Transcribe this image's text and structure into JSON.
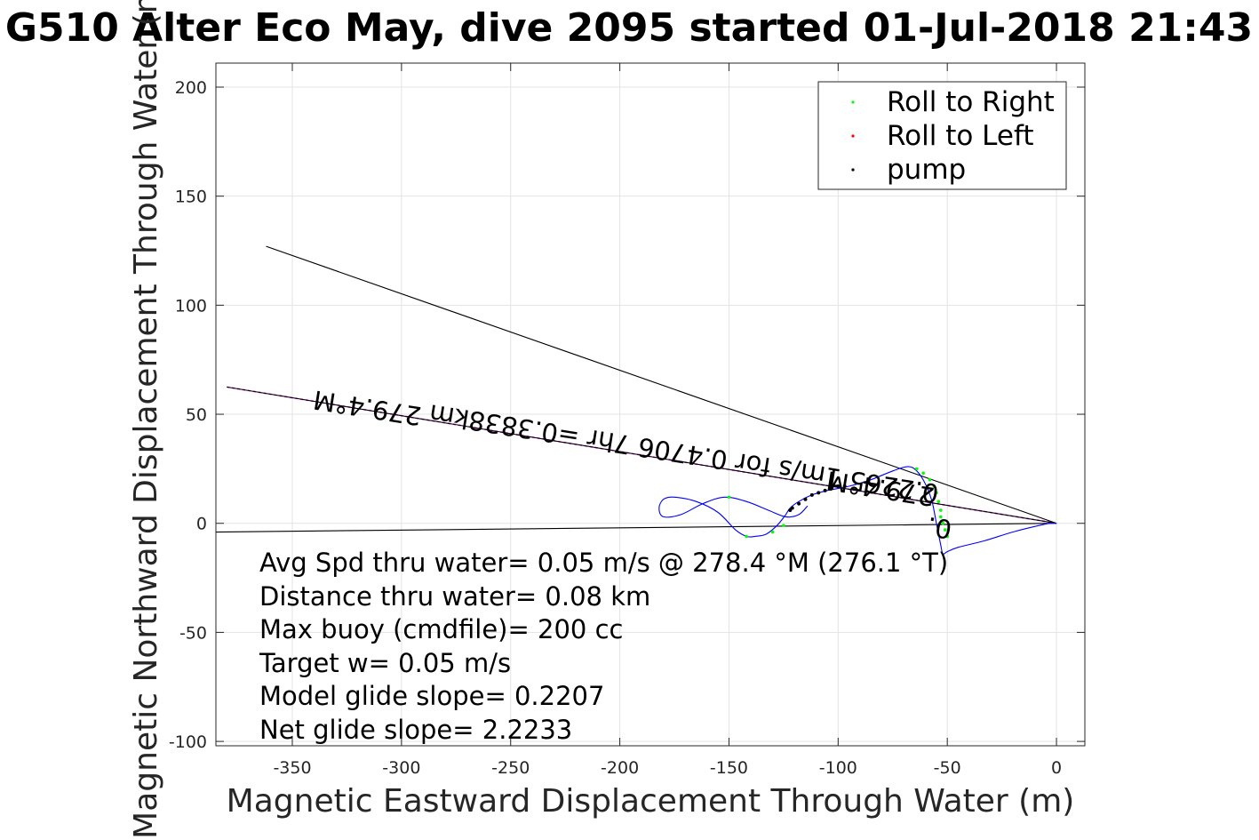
{
  "chart_data": {
    "type": "line",
    "title": "G510 Alter Eco May, dive 2095 started 01-Jul-2018 21:43",
    "xlabel": "Magnetic Eastward Displacement Through Water (m)",
    "ylabel": "Magnetic Northward Displacement Through Water (m)",
    "xlim": [
      -385,
      13
    ],
    "ylim": [
      -102,
      211
    ],
    "xticks": [
      -350,
      -300,
      -250,
      -200,
      -150,
      -100,
      -50,
      0
    ],
    "yticks": [
      -100,
      -50,
      0,
      50,
      100,
      150,
      200
    ],
    "grid": true,
    "legend": {
      "location": "top-right",
      "entries": [
        {
          "name": "Roll to Right",
          "color": "#00ff00"
        },
        {
          "name": "Roll to Left",
          "color": "#ff0000"
        },
        {
          "name": "pump",
          "color": "#000000"
        }
      ]
    },
    "reference_lines": [
      {
        "name": "heading-line",
        "color": "#ff00ff",
        "x": [
          -380,
          0
        ],
        "y": [
          62.5,
          0
        ]
      },
      {
        "name": "black-heading-line",
        "color": "#000000",
        "x": [
          -380,
          0
        ],
        "y": [
          62.5,
          0
        ]
      },
      {
        "name": "upper-line",
        "color": "#000000",
        "x": [
          -362,
          0
        ],
        "y": [
          127,
          0
        ]
      },
      {
        "name": "lower-line",
        "color": "#000000",
        "x": [
          -385,
          0
        ],
        "y": [
          -4,
          0
        ]
      }
    ],
    "track": {
      "color": "#0000ff",
      "x": [
        0,
        -3,
        -8,
        -20,
        -33,
        -45,
        -50,
        -52,
        -53,
        -55,
        -57,
        -60,
        -64,
        -68,
        -75,
        -85,
        -95,
        -105,
        -112,
        -118,
        -122,
        -124,
        -128,
        -133,
        -138,
        -142,
        -147,
        -155,
        -165,
        -175,
        -180,
        -182,
        -180,
        -172,
        -162,
        -152,
        -142,
        -132,
        -124,
        -118,
        -114
      ],
      "y": [
        0,
        0,
        -1,
        -4,
        -8,
        -11,
        -13,
        -14,
        -10,
        0,
        10,
        18,
        24,
        26,
        24,
        20,
        17,
        15,
        13,
        10,
        7,
        4,
        -1,
        -5,
        -6,
        -6,
        -3,
        5,
        10,
        12,
        11,
        7,
        3,
        4,
        9,
        12,
        10,
        6,
        3,
        4,
        8
      ]
    },
    "roll_right_points": {
      "x": [
        -50,
        -51,
        -52,
        -53,
        -53,
        -54,
        -55,
        -56,
        -58,
        -61,
        -64,
        -125,
        -130,
        -142,
        -150
      ],
      "y": [
        -6,
        -3,
        0,
        3,
        6,
        10,
        14,
        17,
        20,
        23,
        25,
        -1,
        -4,
        -6,
        12
      ]
    },
    "pump_points": {
      "x": [
        -97,
        -100,
        -103,
        -106,
        -109,
        -112,
        -115,
        -118,
        -121,
        -122
      ],
      "y": [
        17,
        17,
        16,
        15,
        14,
        13,
        11,
        9,
        7,
        6
      ]
    },
    "rotated_labels": [
      {
        "text": "279.4°M",
        "x": -315,
        "y": 57,
        "angle": 189
      },
      {
        "text": "0.2265 1m/s for 0.4706 7hr =0.3838km",
        "x": -170,
        "y": 36,
        "angle": 189
      },
      {
        "text": "279.4°M",
        "x": -80,
        "y": 20,
        "angle": 189
      },
      {
        "text": "0.",
        "x": -53,
        "y": 2,
        "angle": 189
      }
    ],
    "annotations": [
      "Avg Spd thru water=  0.05 m/s @ 278.4 °M (276.1  °T)",
      "Distance thru water=  0.08 km",
      "Max buoy (cmdfile)= 200 cc",
      "Target w= 0.05 m/s",
      "Model glide slope= 0.2207",
      "Net glide slope= 2.2233"
    ]
  }
}
